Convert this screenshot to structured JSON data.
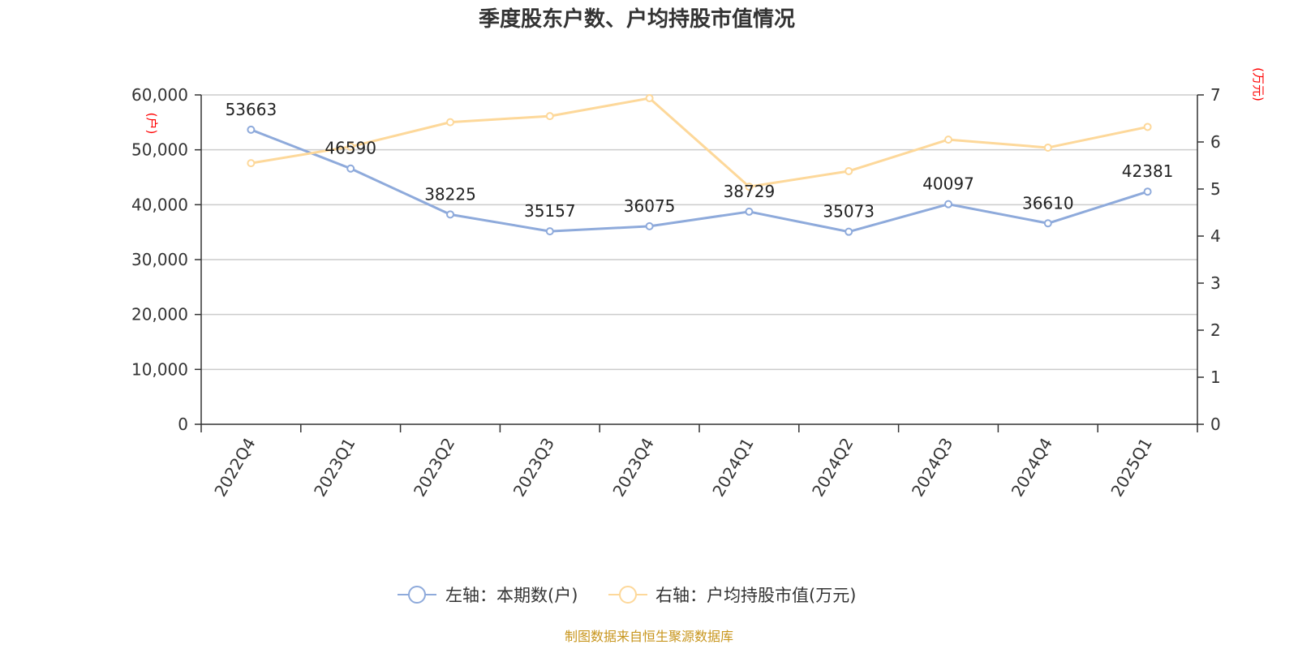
{
  "chart_data": {
    "type": "line",
    "title": "季度股东户数、户均持股市值情况",
    "categories": [
      "2022Q4",
      "2023Q1",
      "2023Q2",
      "2023Q3",
      "2023Q4",
      "2024Q1",
      "2024Q2",
      "2024Q3",
      "2024Q4",
      "2025Q1"
    ],
    "left_axis": {
      "unit": "(户)",
      "ylim": [
        0,
        60000
      ],
      "ticks": [
        "0",
        "10,000",
        "20,000",
        "30,000",
        "40,000",
        "50,000",
        "60,000"
      ]
    },
    "right_axis": {
      "unit": "(万元)",
      "ylim": [
        0,
        7
      ],
      "ticks": [
        "0",
        "1",
        "2",
        "3",
        "4",
        "5",
        "6",
        "7"
      ]
    },
    "series": [
      {
        "name": "左轴：本期数(户)",
        "axis": "left",
        "color": "#8eaadb",
        "values": [
          53663,
          46590,
          38225,
          35157,
          36075,
          38729,
          35073,
          40097,
          36610,
          42381
        ],
        "labels": [
          "53663",
          "46590",
          "38225",
          "35157",
          "36075",
          "38729",
          "35073",
          "40097",
          "36610",
          "42381"
        ]
      },
      {
        "name": "右轴：户均持股市值(万元)",
        "axis": "right",
        "color": "#fdd89a",
        "values": [
          5.55,
          5.9,
          6.42,
          6.55,
          6.93,
          5.05,
          5.38,
          6.05,
          5.88,
          6.32
        ]
      }
    ],
    "grid": true,
    "legend_position": "bottom",
    "source": "制图数据来自恒生聚源数据库"
  }
}
